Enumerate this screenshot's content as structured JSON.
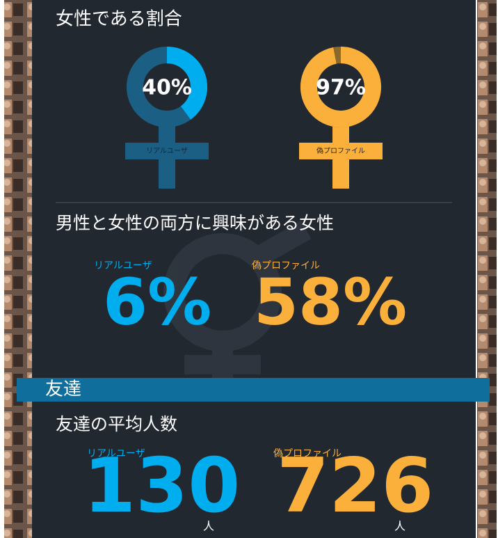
{
  "section1": {
    "title": "女性である割合",
    "items": [
      {
        "label": "リアルユーザ",
        "value": 40,
        "value_label": "40%",
        "color": "#00aeef",
        "track": "#1b5f85"
      },
      {
        "label": "偽プロファイル",
        "value": 97,
        "value_label": "97%",
        "color": "#fbb03b",
        "track": "#8a6a2a"
      }
    ]
  },
  "section2": {
    "title": "男性と女性の両方に興味がある女性",
    "items": [
      {
        "label": "リアルユーザ",
        "value": 6,
        "value_label": "6%",
        "color": "#00aeef"
      },
      {
        "label": "偽プロファイル",
        "value": 58,
        "value_label": "58%",
        "color": "#fbb03b"
      }
    ]
  },
  "band": "友達",
  "section3": {
    "title": "友達の平均人数",
    "unit": "人",
    "items": [
      {
        "label": "リアルユーザ",
        "value": 130,
        "color": "#00aeef"
      },
      {
        "label": "偽プロファイル",
        "value": 726,
        "color": "#fbb03b"
      }
    ]
  }
}
